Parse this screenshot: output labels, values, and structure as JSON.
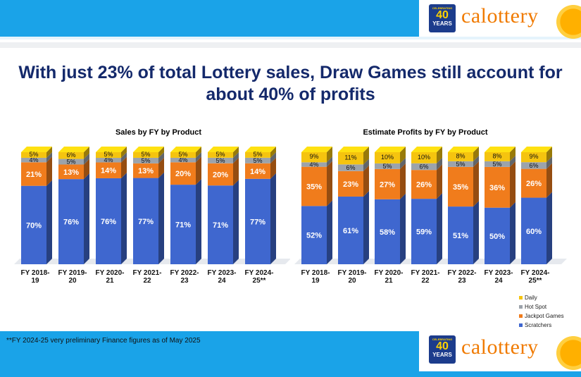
{
  "title": "With just 23% of total Lottery sales, Draw Games still account for about 40% of profits",
  "header": {
    "brand": "calottery",
    "badge_top": "CELEBRATING",
    "badge_number": "40",
    "badge_years": "YEARS",
    "badge_bottom": "TOGETHER"
  },
  "footnote": "**FY 2024-25 very preliminary Finance figures as of May 2025",
  "colors": {
    "daily": "#f5c40f",
    "hot_spot": "#9ca3ab",
    "jackpot": "#f07c1c",
    "scratchers": "#3f67cf",
    "band": "#1aa3e8",
    "title": "#14296b"
  },
  "legend": [
    {
      "name": "Daily",
      "color": "#f5c40f"
    },
    {
      "name": "Hot Spot",
      "color": "#9ca3ab"
    },
    {
      "name": "Jackpot Games",
      "color": "#f07c1c"
    },
    {
      "name": "Scratchers",
      "color": "#3f67cf"
    }
  ],
  "chart_data": [
    {
      "type": "bar",
      "stacked": true,
      "style": "3d",
      "title": "Sales by FY by Product",
      "categories": [
        "FY 2018-19",
        "FY 2019-20",
        "FY 2020-21",
        "FY 2021-22",
        "FY 2022-23",
        "FY 2023-24",
        "FY 2024-25**"
      ],
      "series": [
        {
          "name": "Scratchers",
          "values": [
            70,
            76,
            76,
            77,
            71,
            71,
            77
          ]
        },
        {
          "name": "Jackpot Games",
          "values": [
            21,
            13,
            14,
            13,
            20,
            20,
            14
          ]
        },
        {
          "name": "Hot Spot",
          "values": [
            4,
            5,
            4,
            5,
            4,
            5,
            5
          ]
        },
        {
          "name": "Daily",
          "values": [
            5,
            6,
            5,
            5,
            5,
            5,
            5
          ]
        }
      ],
      "value_format": "percent"
    },
    {
      "type": "bar",
      "stacked": true,
      "style": "3d",
      "title": "Estimate Profits by FY by Product",
      "categories": [
        "FY 2018-19",
        "FY 2019-20",
        "FY 2020-21",
        "FY 2021-22",
        "FY 2022-23",
        "FY 2023-24",
        "FY 2024-25**"
      ],
      "series": [
        {
          "name": "Scratchers",
          "values": [
            52,
            61,
            58,
            59,
            51,
            50,
            60
          ]
        },
        {
          "name": "Jackpot Games",
          "values": [
            35,
            23,
            27,
            26,
            35,
            36,
            26
          ]
        },
        {
          "name": "Hot Spot",
          "values": [
            4,
            6,
            5,
            6,
            5,
            5,
            6
          ]
        },
        {
          "name": "Daily",
          "values": [
            9,
            11,
            10,
            10,
            8,
            8,
            9
          ]
        }
      ],
      "value_format": "percent",
      "legend_position": "bottom-right"
    }
  ]
}
